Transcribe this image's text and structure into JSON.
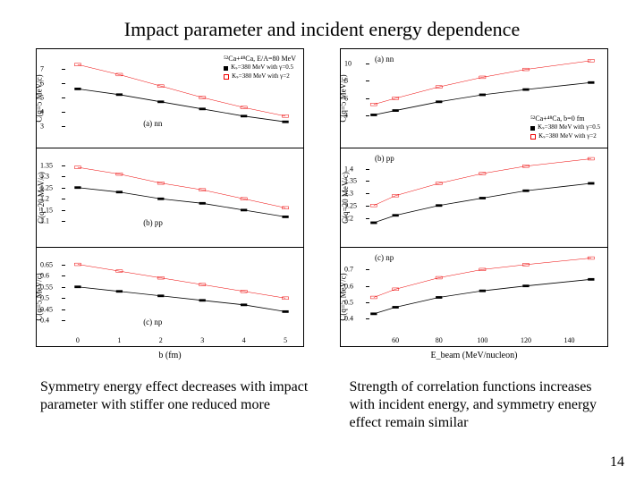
{
  "title": "Impact parameter and incident energy dependence",
  "page_number": "14",
  "captions": {
    "left": "Symmetry energy effect decreases with impact parameter with stiffer one reduced more",
    "right": "Strength of correlation functions increases with incident energy, and symmetry energy effect remain similar"
  },
  "colors": {
    "series_stiff": "#000000",
    "series_soft": "#ee0000",
    "axis": "#000000",
    "background": "#ffffff"
  },
  "left_figure": {
    "xlabel": "b (fm)",
    "x_ticks": [
      0,
      1,
      2,
      3,
      4,
      5
    ],
    "xlim": [
      -0.3,
      5.3
    ],
    "reaction": "⁵²Ca+⁴⁸Ca, E/A=80 MeV",
    "legend": {
      "stiff": "Kₛ=380 MeV with γ=0.5",
      "soft": "Kₛ=380 MeV with γ=2"
    },
    "panels": [
      {
        "id": "a",
        "label": "(a) nn",
        "ylabel": "C(q=5 MeV/c)",
        "ylim": [
          2.5,
          8.0
        ],
        "y_ticks": [
          3.0,
          4.0,
          5.0,
          6.0,
          7.0
        ],
        "series": {
          "soft": [
            [
              0,
              7.3
            ],
            [
              1,
              6.6
            ],
            [
              2,
              5.8
            ],
            [
              3,
              5.0
            ],
            [
              4,
              4.3
            ],
            [
              5,
              3.7
            ]
          ],
          "stiff": [
            [
              0,
              5.6
            ],
            [
              1,
              5.2
            ],
            [
              2,
              4.7
            ],
            [
              3,
              4.2
            ],
            [
              4,
              3.7
            ],
            [
              5,
              3.3
            ]
          ]
        }
      },
      {
        "id": "b",
        "label": "(b) pp",
        "ylabel": "C(q=20 MeV/c)",
        "ylim": [
          1.05,
          1.4
        ],
        "y_ticks": [
          1.1,
          1.15,
          1.2,
          1.25,
          1.3,
          1.35
        ],
        "series": {
          "soft": [
            [
              0,
              1.34
            ],
            [
              1,
              1.31
            ],
            [
              2,
              1.27
            ],
            [
              3,
              1.24
            ],
            [
              4,
              1.2
            ],
            [
              5,
              1.16
            ]
          ],
          "stiff": [
            [
              0,
              1.25
            ],
            [
              1,
              1.23
            ],
            [
              2,
              1.2
            ],
            [
              3,
              1.18
            ],
            [
              4,
              1.15
            ],
            [
              5,
              1.12
            ]
          ]
        }
      },
      {
        "id": "c",
        "label": "(c) np",
        "ylabel": "C(q=5 MeV/c)",
        "ylim": [
          0.35,
          0.7
        ],
        "y_ticks": [
          0.4,
          0.45,
          0.5,
          0.55,
          0.6,
          0.65
        ],
        "series": {
          "soft": [
            [
              0,
              0.65
            ],
            [
              1,
              0.62
            ],
            [
              2,
              0.59
            ],
            [
              3,
              0.56
            ],
            [
              4,
              0.53
            ],
            [
              5,
              0.5
            ]
          ],
          "stiff": [
            [
              0,
              0.55
            ],
            [
              1,
              0.53
            ],
            [
              2,
              0.51
            ],
            [
              3,
              0.49
            ],
            [
              4,
              0.47
            ],
            [
              5,
              0.44
            ]
          ]
        }
      }
    ]
  },
  "right_figure": {
    "xlabel": "Eₐₑₐₘ (MeV/nucleon)",
    "xlabel_plain": "E_beam (MeV/nucleon)",
    "x_ticks": [
      60,
      80,
      100,
      120,
      140
    ],
    "xlim": [
      48,
      155
    ],
    "reaction": "⁵²Ca+⁴⁸Ca, b=0 fm",
    "legend": {
      "stiff": "Kₛ=380 MeV with γ=0.5",
      "soft": "Kₛ=380 MeV with γ=2"
    },
    "panels": [
      {
        "id": "a",
        "label": "(a) nn",
        "ylabel": "C(q=5 MeV/c)",
        "ylim": [
          2,
          11
        ],
        "y_ticks": [
          4,
          6,
          8,
          10
        ],
        "series": {
          "soft": [
            [
              50,
              5.3
            ],
            [
              60,
              6.0
            ],
            [
              80,
              7.3
            ],
            [
              100,
              8.4
            ],
            [
              120,
              9.3
            ],
            [
              150,
              10.3
            ]
          ],
          "stiff": [
            [
              50,
              4.1
            ],
            [
              60,
              4.6
            ],
            [
              80,
              5.6
            ],
            [
              100,
              6.4
            ],
            [
              120,
              7.0
            ],
            [
              150,
              7.8
            ]
          ]
        }
      },
      {
        "id": "b",
        "label": "(b) pp",
        "ylabel": "C(q=20 MeV/c)",
        "ylim": [
          1.14,
          1.46
        ],
        "y_ticks": [
          1.2,
          1.25,
          1.3,
          1.35,
          1.4
        ],
        "series": {
          "soft": [
            [
              50,
              1.25
            ],
            [
              60,
              1.29
            ],
            [
              80,
              1.34
            ],
            [
              100,
              1.38
            ],
            [
              120,
              1.41
            ],
            [
              150,
              1.44
            ]
          ],
          "stiff": [
            [
              50,
              1.18
            ],
            [
              60,
              1.21
            ],
            [
              80,
              1.25
            ],
            [
              100,
              1.28
            ],
            [
              120,
              1.31
            ],
            [
              150,
              1.34
            ]
          ]
        }
      },
      {
        "id": "c",
        "label": "(c) np",
        "ylabel": "C(q=5 MeV/c)",
        "ylim": [
          0.32,
          0.8
        ],
        "y_ticks": [
          0.4,
          0.5,
          0.6,
          0.7
        ],
        "series": {
          "soft": [
            [
              50,
              0.53
            ],
            [
              60,
              0.58
            ],
            [
              80,
              0.65
            ],
            [
              100,
              0.7
            ],
            [
              120,
              0.73
            ],
            [
              150,
              0.77
            ]
          ],
          "stiff": [
            [
              50,
              0.43
            ],
            [
              60,
              0.47
            ],
            [
              80,
              0.53
            ],
            [
              100,
              0.57
            ],
            [
              120,
              0.6
            ],
            [
              150,
              0.64
            ]
          ]
        }
      }
    ]
  }
}
